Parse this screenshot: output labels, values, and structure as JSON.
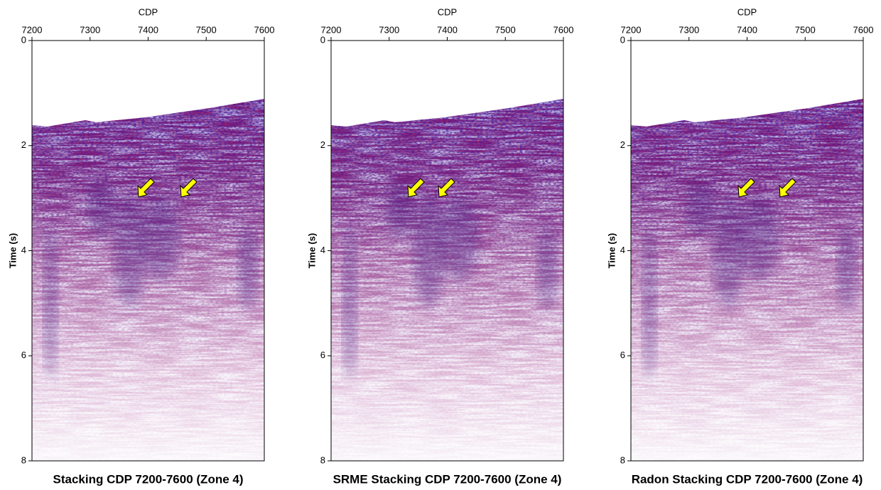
{
  "chart_data": [
    {
      "type": "seismic",
      "title": "Stacking CDP 7200-7600 (Zone 4)",
      "x_label": "CDP",
      "y_label": "Time (s)",
      "xlim": [
        7200,
        7600
      ],
      "xticks": [
        7200,
        7300,
        7400,
        7500,
        7600
      ],
      "ylim": [
        0,
        8
      ],
      "yticks": [
        0,
        2,
        4,
        6,
        8
      ],
      "y_inverted": true
    },
    {
      "type": "seismic",
      "title": "SRME Stacking CDP 7200-7600 (Zone 4)",
      "x_label": "CDP",
      "y_label": "Time (s)",
      "xlim": [
        7200,
        7600
      ],
      "xticks": [
        7200,
        7300,
        7400,
        7500,
        7600
      ],
      "ylim": [
        0,
        8
      ],
      "yticks": [
        0,
        2,
        4,
        6,
        8
      ],
      "y_inverted": true
    },
    {
      "type": "seismic",
      "title": "Radon Stacking CDP 7200-7600 (Zone 4)",
      "x_label": "CDP",
      "y_label": "Time (s)",
      "xlim": [
        7200,
        7600
      ],
      "xticks": [
        7200,
        7300,
        7400,
        7500,
        7600
      ],
      "ylim": [
        0,
        8
      ],
      "yticks": [
        0,
        2,
        4,
        6,
        8
      ],
      "y_inverted": true
    }
  ]
}
